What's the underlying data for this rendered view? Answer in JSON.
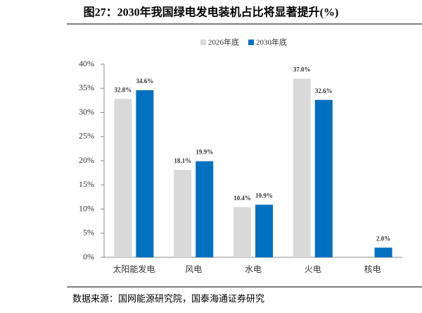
{
  "chart_data": {
    "type": "bar",
    "title": "图27：2030年我国绿电发电装机占比将显著提升(%)",
    "source": "数据来源：国网能源研究院，国泰海通证券研究",
    "categories": [
      "太阳能发电",
      "风电",
      "水电",
      "火电",
      "核电"
    ],
    "series": [
      {
        "name": "2026年底",
        "color": "#d9d9d9",
        "values": [
          32.8,
          18.1,
          10.4,
          37.0,
          null
        ],
        "value_labels": [
          "32.8%",
          "18.1%",
          "10.4%",
          "37.0%",
          null
        ]
      },
      {
        "name": "2030年底",
        "color": "#0070c0",
        "values": [
          34.6,
          19.9,
          10.9,
          32.6,
          2.0
        ],
        "value_labels": [
          "34.6%",
          "19.9%",
          "10.9%",
          "32.6%",
          "2.0%"
        ]
      }
    ],
    "ylim": [
      0,
      40
    ],
    "yticks": [
      {
        "value": 0,
        "label": "0%"
      },
      {
        "value": 5,
        "label": "5%"
      },
      {
        "value": 10,
        "label": "10%"
      },
      {
        "value": 15,
        "label": "15%"
      },
      {
        "value": 20,
        "label": "20%"
      },
      {
        "value": 25,
        "label": "25%"
      },
      {
        "value": 30,
        "label": "30%"
      },
      {
        "value": 35,
        "label": "35%"
      },
      {
        "value": 40,
        "label": "40%"
      }
    ],
    "legend": "top"
  }
}
